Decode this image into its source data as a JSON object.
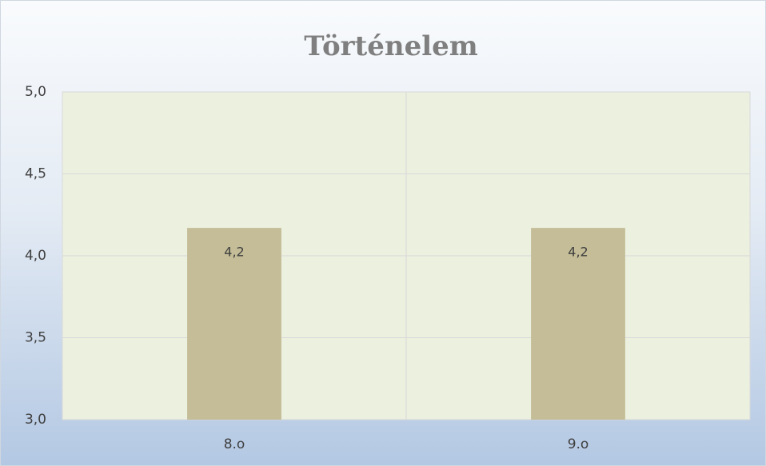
{
  "chart_data": {
    "type": "bar",
    "title": "Történelem",
    "categories": [
      "8.o",
      "9.o"
    ],
    "values": [
      4.17,
      4.17
    ],
    "value_labels": [
      "4,2",
      "4,2"
    ],
    "color": "#c4bd97",
    "ylim": [
      3.0,
      5.0
    ],
    "yticks": [
      {
        "value": 3.0,
        "label": "3,0"
      },
      {
        "value": 3.5,
        "label": "3,5"
      },
      {
        "value": 4.0,
        "label": "4,0"
      },
      {
        "value": 4.5,
        "label": "4,5"
      },
      {
        "value": 5.0,
        "label": "5,0"
      }
    ],
    "grid": true
  }
}
